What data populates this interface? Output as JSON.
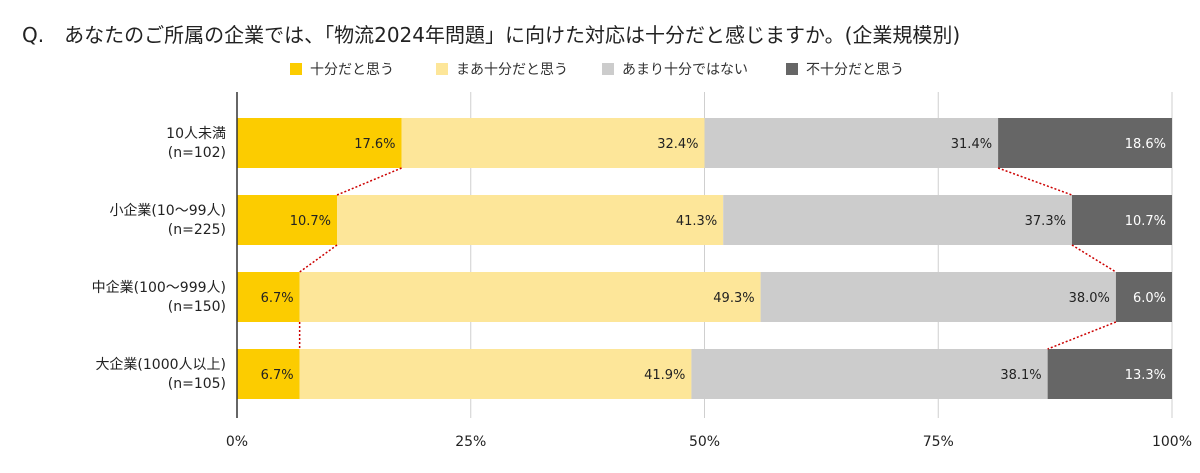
{
  "chart_data": {
    "type": "bar",
    "orientation": "horizontal",
    "stacked": true,
    "title": "Q.　あなたのご所属の企業では、「物流2024年問題」に向けた対応は十分だと感じますか。(企業規模別)",
    "categories": [
      {
        "label1": "10人未満",
        "label2": "(n=102)"
      },
      {
        "label1": "小企業(10〜99人)",
        "label2": "(n=225)"
      },
      {
        "label1": "中企業(100〜999人)",
        "label2": "(n=150)"
      },
      {
        "label1": "大企業(1000人以上)",
        "label2": "(n=105)"
      }
    ],
    "series": [
      {
        "name": "十分だと思う",
        "color": "#fccc00",
        "label_color": "#222222",
        "values": [
          17.6,
          10.7,
          6.7,
          6.7
        ],
        "labels": [
          "17.6%",
          "10.7%",
          "6.7%",
          "6.7%"
        ]
      },
      {
        "name": "まあ十分だと思う",
        "color": "#fde699",
        "label_color": "#222222",
        "values": [
          32.4,
          41.3,
          49.3,
          41.9
        ],
        "labels": [
          "32.4%",
          "41.3%",
          "49.3%",
          "41.9%"
        ]
      },
      {
        "name": "あまり十分ではない",
        "color": "#cccccc",
        "label_color": "#222222",
        "values": [
          31.4,
          37.3,
          38.0,
          38.1
        ],
        "labels": [
          "31.4%",
          "37.3%",
          "38.0%",
          "38.1%"
        ]
      },
      {
        "name": "不十分だと思う",
        "color": "#666666",
        "label_color": "#ffffff",
        "values": [
          18.6,
          10.7,
          6.0,
          13.3
        ],
        "labels": [
          "18.6%",
          "10.7%",
          "6.0%",
          "13.3%"
        ]
      }
    ],
    "xlim": [
      0,
      100
    ],
    "x_ticks": [
      0,
      25,
      50,
      75,
      100
    ],
    "x_tick_labels": [
      "0%",
      "25%",
      "50%",
      "75%",
      "100%"
    ],
    "grid": true,
    "legend_position": "top",
    "connector_lines": {
      "color": "#cc0000",
      "style": "dotted",
      "series_boundaries": [
        1,
        3
      ]
    }
  }
}
